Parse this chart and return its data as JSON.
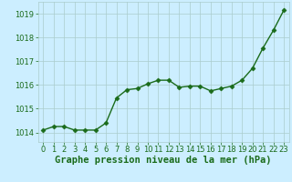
{
  "x": [
    0,
    1,
    2,
    3,
    4,
    5,
    6,
    7,
    8,
    9,
    10,
    11,
    12,
    13,
    14,
    15,
    16,
    17,
    18,
    19,
    20,
    21,
    22,
    23
  ],
  "y": [
    1014.1,
    1014.25,
    1014.25,
    1014.1,
    1014.1,
    1014.1,
    1014.4,
    1015.45,
    1015.8,
    1015.85,
    1016.05,
    1016.2,
    1016.2,
    1015.9,
    1015.95,
    1015.95,
    1015.75,
    1015.85,
    1015.95,
    1016.2,
    1016.7,
    1017.55,
    1018.3,
    1019.15
  ],
  "line_color": "#1a6b1a",
  "marker": "D",
  "markersize": 2.5,
  "linewidth": 1.0,
  "background_color": "#cceeff",
  "grid_color": "#aacccc",
  "xlabel": "Graphe pression niveau de la mer (hPa)",
  "xlabel_fontsize": 7.5,
  "ylim": [
    1013.6,
    1019.5
  ],
  "xlim": [
    -0.5,
    23.5
  ],
  "yticks": [
    1014,
    1015,
    1016,
    1017,
    1018,
    1019
  ],
  "xticks": [
    0,
    1,
    2,
    3,
    4,
    5,
    6,
    7,
    8,
    9,
    10,
    11,
    12,
    13,
    14,
    15,
    16,
    17,
    18,
    19,
    20,
    21,
    22,
    23
  ],
  "tick_fontsize": 6,
  "tick_color": "#1a6b1a",
  "spine_color": "#aacccc"
}
